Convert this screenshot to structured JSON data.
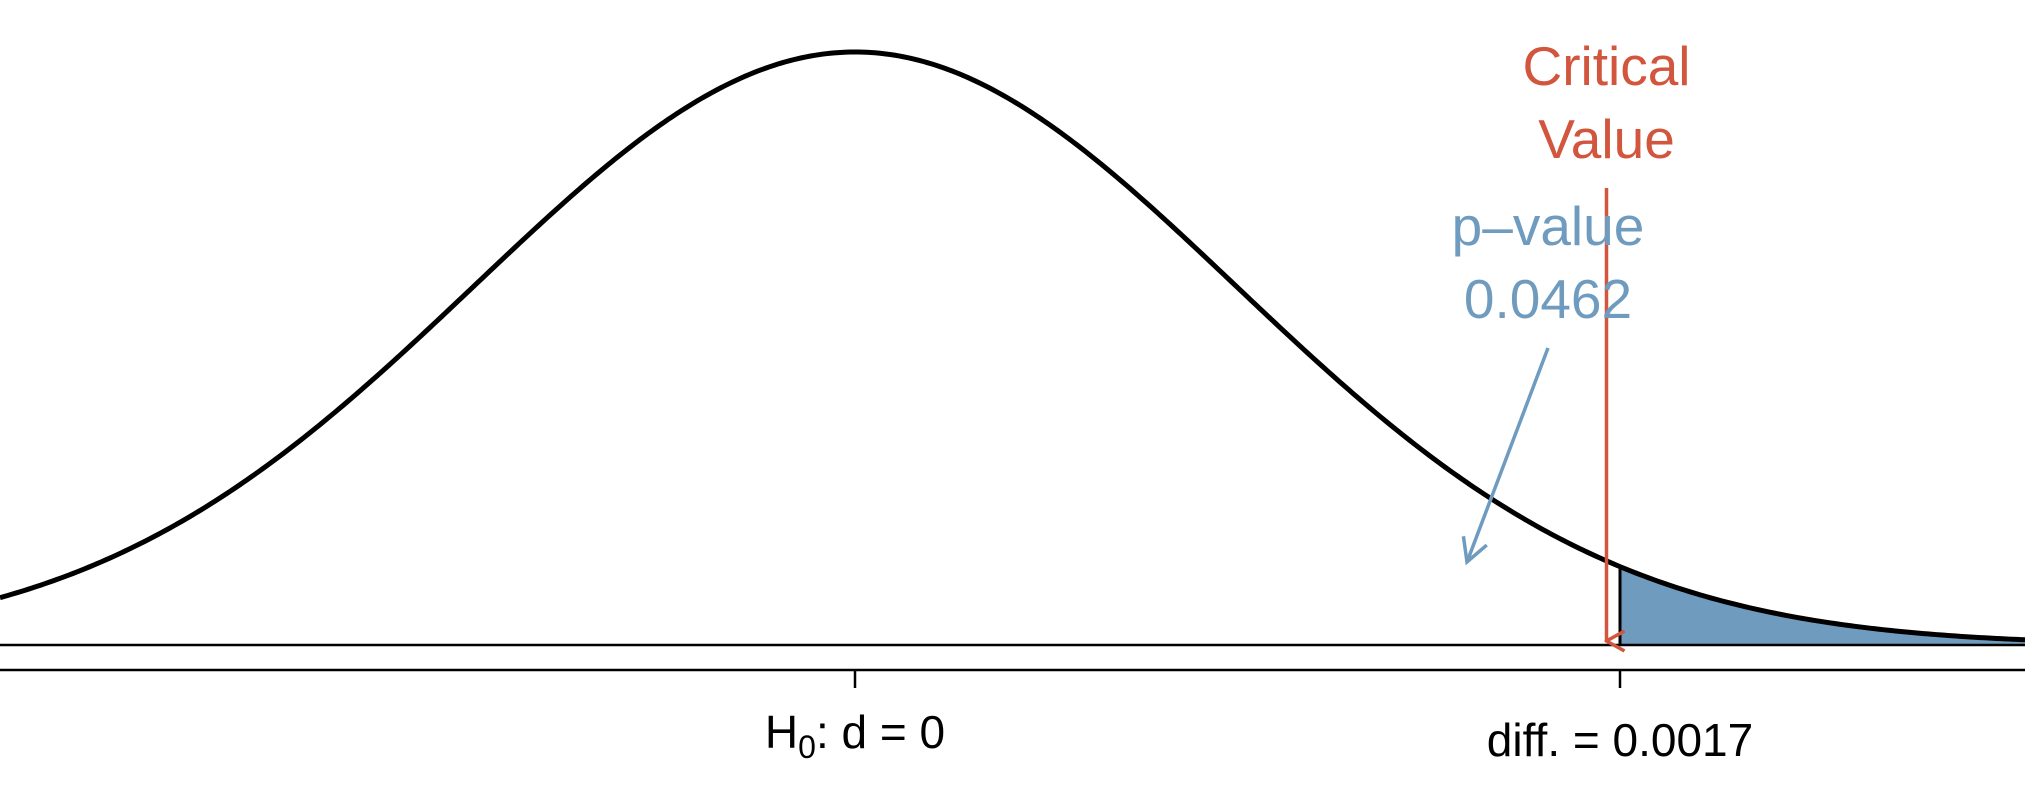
{
  "chart_data": {
    "type": "area",
    "distribution": "normal",
    "mean": 0,
    "sd": 0.000845,
    "xlim": [
      -0.0019,
      0.0026
    ],
    "null_label": {
      "value": 0,
      "prefix": "H",
      "subscript": "0",
      "suffix": ": d = 0"
    },
    "observed": {
      "value": 0.0017,
      "label": "diff. = 0.0017"
    },
    "critical_value": {
      "value": 0.00167,
      "line1": "Critical",
      "line2": "Value",
      "color": "#d2553d"
    },
    "p_value": {
      "line1": "p–value",
      "line2": "0.0462",
      "value": 0.0462,
      "color": "#6f9bbf"
    },
    "curve_color": "#000000"
  }
}
